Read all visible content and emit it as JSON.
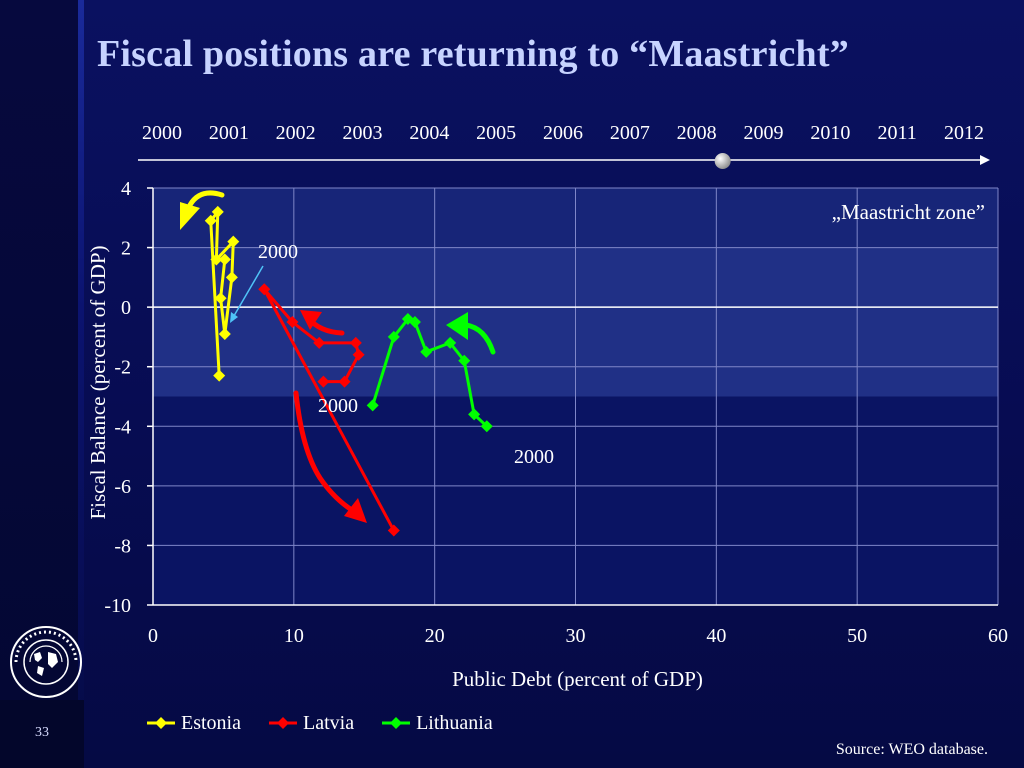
{
  "slide": {
    "title": "Fiscal positions are returning to “Maastricht”",
    "page_number": "33",
    "source": "Source: WEO database."
  },
  "colors": {
    "estonia": "#ffff00",
    "latvia": "#ff0000",
    "lithuania": "#00ff00",
    "plot_bg": "#0a1463",
    "zone": "#22338a",
    "grid": "#7f86c8",
    "title": "#c7d3ff"
  },
  "timeline": {
    "years": [
      "2000",
      "2001",
      "2002",
      "2003",
      "2004",
      "2005",
      "2006",
      "2007",
      "2008",
      "2009",
      "2010",
      "2011",
      "2012"
    ],
    "marker_year": "2008"
  },
  "chart_data": {
    "type": "line",
    "xlabel": "Public Debt (percent of GDP)",
    "ylabel": "Fiscal Balance (percent of GDP)",
    "xlim": [
      0,
      60
    ],
    "ylim": [
      -10,
      4
    ],
    "x_ticks": [
      "0",
      "10",
      "20",
      "30",
      "40",
      "50",
      "60"
    ],
    "y_ticks": [
      "4",
      "2",
      "0",
      "-2",
      "-4",
      "-6",
      "-8",
      "-10"
    ],
    "grid": true,
    "legend_position": "bottom",
    "zone_label": "„Maastricht zone”",
    "zone_ylim": [
      -3,
      2
    ],
    "series": [
      {
        "name": "Estonia",
        "color_key": "estonia",
        "points": [
          [
            4.7,
            -2.3
          ],
          [
            4.1,
            2.9
          ],
          [
            4.6,
            3.2
          ],
          [
            4.5,
            1.6
          ],
          [
            5.7,
            2.2
          ],
          [
            5.6,
            1.0
          ],
          [
            5.1,
            -0.9
          ],
          [
            4.8,
            0.3
          ],
          [
            5.1,
            1.6
          ]
        ]
      },
      {
        "name": "Latvia",
        "color_key": "latvia",
        "points": [
          [
            17.1,
            -7.5
          ],
          [
            7.9,
            0.6
          ],
          [
            9.9,
            -0.5
          ],
          [
            11.8,
            -1.2
          ],
          [
            14.4,
            -1.2
          ],
          [
            14.6,
            -1.6
          ],
          [
            13.6,
            -2.5
          ],
          [
            12.1,
            -2.5
          ]
        ]
      },
      {
        "name": "Lithuania",
        "color_key": "lithuania",
        "points": [
          [
            15.6,
            -3.3
          ],
          [
            17.1,
            -1.0
          ],
          [
            18.1,
            -0.4
          ],
          [
            18.6,
            -0.5
          ],
          [
            19.4,
            -1.5
          ],
          [
            21.1,
            -1.2
          ],
          [
            22.1,
            -1.8
          ],
          [
            22.8,
            -3.6
          ],
          [
            23.7,
            -4.0
          ]
        ]
      }
    ],
    "annotations": [
      {
        "text": "2000",
        "series": "Estonia"
      },
      {
        "text": "2000",
        "series": "Latvia"
      },
      {
        "text": "2000",
        "series": "Lithuania"
      }
    ]
  }
}
